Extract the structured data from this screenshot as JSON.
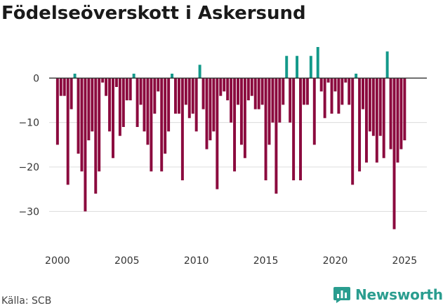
{
  "title": "Födelseöverskott i Askersund",
  "source": "Källa: SCB",
  "brand": {
    "name": "Newsworthy",
    "color": "#2a9d8f",
    "icon": "bar-chart-speech-bubble-icon"
  },
  "colors": {
    "negative": "#8b0a3e",
    "positive": "#13998a"
  },
  "chart_data": {
    "type": "bar",
    "title": "Födelseöverskott i Askersund",
    "xlabel": "",
    "ylabel": "",
    "x_ticks": [
      2000,
      2005,
      2010,
      2015,
      2020,
      2025
    ],
    "y_ticks": [
      0,
      -10,
      -20,
      -30
    ],
    "y_tick_labels": [
      "0",
      "−10",
      "−20",
      "−30"
    ],
    "xlim": [
      1999.4,
      2026.6
    ],
    "ylim": [
      -38,
      10
    ],
    "grid": true,
    "bar_width_years": 0.2,
    "x_start": 2000.0,
    "x_step": 0.25,
    "values": [
      -15,
      -4,
      -4,
      -24,
      -7,
      1,
      -17,
      -21,
      -30,
      -14,
      -12,
      -26,
      -21,
      -1,
      -4,
      -12,
      -18,
      -2,
      -13,
      -11,
      -5,
      -5,
      1,
      -11,
      -6,
      -12,
      -15,
      -21,
      -8,
      -3,
      -21,
      -17,
      -12,
      1,
      -8,
      -8,
      -23,
      -6,
      -9,
      -8,
      -12,
      3,
      -7,
      -16,
      -14,
      -12,
      -25,
      -4,
      -3,
      -5,
      -10,
      -21,
      -6,
      -15,
      -18,
      -5,
      -4,
      -7,
      -7,
      -6,
      -23,
      -15,
      -10,
      -26,
      -10,
      -6,
      5,
      -10,
      -23,
      5,
      -23,
      -6,
      -6,
      5,
      -15,
      7,
      -3,
      -9,
      -1,
      -8,
      -3,
      -8,
      -6,
      -1,
      -6,
      -24,
      1,
      -21,
      -7,
      -19,
      -12,
      -13,
      -19,
      -13,
      -18,
      6,
      -16,
      -34,
      -19,
      -16,
      -14
    ]
  }
}
